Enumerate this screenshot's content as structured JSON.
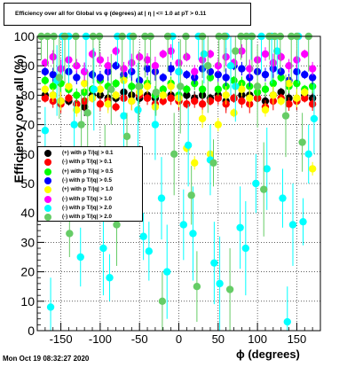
{
  "title": "Efficiency over all for Global vs φ (degrees) at | η | <= 1.0 at pT > 0.11",
  "footer": "Mon Oct 19 08:32:27 2020",
  "chart_data": {
    "type": "scatter",
    "xlabel": "ϕ (degrees)",
    "ylabel": "Efficiency over all (%)",
    "xlim": [
      -180,
      180
    ],
    "ylim": [
      0,
      100
    ],
    "xticks": [
      -150,
      -100,
      -50,
      0,
      50,
      100,
      150
    ],
    "yticks": [
      0,
      10,
      20,
      30,
      40,
      50,
      60,
      70,
      80,
      90,
      100
    ],
    "grid": true,
    "legend_position": "left-middle",
    "series": [
      {
        "name": "(+) with p T/|q| > 0.1",
        "color": "#000000",
        "x": [
          -170,
          -160,
          -150,
          -140,
          -130,
          -120,
          -110,
          -100,
          -90,
          -80,
          -70,
          -60,
          -50,
          -40,
          -30,
          -20,
          -10,
          0,
          10,
          20,
          30,
          40,
          50,
          60,
          70,
          80,
          90,
          100,
          110,
          120,
          130,
          140,
          150,
          160,
          170
        ],
        "y": [
          80,
          80,
          78,
          78,
          77,
          76,
          80,
          80,
          79,
          79,
          81,
          80,
          79,
          80,
          79,
          80,
          80,
          78,
          80,
          79,
          80,
          79,
          80,
          78,
          79,
          80,
          80,
          79,
          78,
          80,
          81,
          79,
          78,
          80,
          79
        ]
      },
      {
        "name": "(-) with p T/|q| > 0.1",
        "color": "#ff0000",
        "x": [
          -170,
          -160,
          -150,
          -140,
          -130,
          -120,
          -110,
          -100,
          -90,
          -80,
          -70,
          -60,
          -50,
          -40,
          -30,
          -20,
          -10,
          0,
          10,
          20,
          30,
          40,
          50,
          60,
          70,
          80,
          90,
          100,
          110,
          120,
          130,
          140,
          150,
          160,
          170
        ],
        "y": [
          79,
          78,
          77,
          79,
          77,
          78,
          79,
          77,
          78,
          76,
          79,
          78,
          80,
          79,
          77,
          78,
          79,
          78,
          77,
          78,
          77,
          78,
          79,
          77,
          79,
          78,
          77,
          79,
          76,
          78,
          79,
          77,
          78,
          79,
          77
        ]
      },
      {
        "name": "(+) with p T/|q| > 0.5",
        "color": "#00ff00",
        "x": [
          -170,
          -160,
          -150,
          -140,
          -130,
          -120,
          -110,
          -100,
          -90,
          -80,
          -70,
          -60,
          -50,
          -40,
          -30,
          -20,
          -10,
          0,
          10,
          20,
          30,
          40,
          50,
          60,
          70,
          80,
          90,
          100,
          110,
          120,
          130,
          140,
          150,
          160,
          170
        ],
        "y": [
          85,
          83,
          84,
          82,
          80,
          81,
          82,
          85,
          83,
          84,
          86,
          83,
          83,
          84,
          80,
          82,
          84,
          80,
          82,
          84,
          82,
          86,
          82,
          83,
          85,
          84,
          83,
          81,
          82,
          84,
          86,
          83,
          84,
          82,
          83
        ]
      },
      {
        "name": "(-) with p T/|q| > 0.5",
        "color": "#0000ff",
        "x": [
          -170,
          -160,
          -150,
          -140,
          -130,
          -120,
          -110,
          -100,
          -90,
          -80,
          -70,
          -60,
          -50,
          -40,
          -30,
          -20,
          -10,
          0,
          10,
          20,
          30,
          40,
          50,
          60,
          70,
          80,
          90,
          100,
          110,
          120,
          130,
          140,
          150,
          160,
          170
        ],
        "y": [
          88,
          87,
          89,
          88,
          86,
          88,
          87,
          86,
          88,
          90,
          87,
          88,
          85,
          89,
          88,
          86,
          89,
          88,
          87,
          86,
          89,
          88,
          87,
          86,
          90,
          89,
          86,
          88,
          87,
          89,
          88,
          85,
          88,
          87,
          86
        ]
      },
      {
        "name": "(+) with p T/|q| > 1.0",
        "color": "#ffff00",
        "x": [
          -170,
          -160,
          -150,
          -140,
          -130,
          -120,
          -110,
          -100,
          -90,
          -80,
          -70,
          -60,
          -50,
          -40,
          -30,
          -20,
          -10,
          0,
          10,
          20,
          30,
          40,
          50,
          60,
          70,
          80,
          90,
          100,
          110,
          120,
          130,
          140,
          150,
          160,
          170
        ],
        "y": [
          82,
          80,
          78,
          83,
          75,
          84,
          79,
          82,
          77,
          80,
          85,
          78,
          81,
          83,
          76,
          80,
          83,
          79,
          62,
          57,
          72,
          60,
          70,
          80,
          74,
          82,
          79,
          83,
          75,
          80,
          78,
          84,
          79,
          81,
          55
        ]
      },
      {
        "name": "(-) with p T/|q| > 1.0",
        "color": "#ff00ff",
        "x": [
          -170,
          -160,
          -150,
          -140,
          -130,
          -120,
          -110,
          -100,
          -90,
          -80,
          -70,
          -60,
          -50,
          -40,
          -30,
          -20,
          -10,
          0,
          10,
          20,
          30,
          40,
          50,
          60,
          70,
          80,
          90,
          100,
          110,
          120,
          130,
          140,
          150,
          160,
          170
        ],
        "y": [
          91,
          93,
          89,
          92,
          90,
          88,
          94,
          92,
          90,
          95,
          89,
          91,
          93,
          92,
          90,
          94,
          95,
          91,
          93,
          88,
          92,
          94,
          90,
          93,
          91,
          95,
          89,
          92,
          94,
          91,
          93,
          90,
          92,
          94,
          89
        ]
      },
      {
        "name": "(-) with p T/|q| > 2.0",
        "color": "#00ffff",
        "x": [
          -170,
          -163,
          -155,
          -148,
          -140,
          -133,
          -125,
          -118,
          -108,
          -96,
          -88,
          -78,
          -70,
          -62,
          -52,
          -45,
          -38,
          -30,
          -22,
          -15,
          -8,
          0,
          6,
          12,
          18,
          25,
          32,
          40,
          45,
          52,
          60,
          66,
          72,
          78,
          85,
          92,
          98,
          105,
          112,
          118,
          125,
          132,
          138,
          145,
          152,
          158,
          165,
          172
        ],
        "y": [
          68,
          8,
          85,
          100,
          100,
          70,
          25,
          100,
          82,
          28,
          18,
          100,
          73,
          100,
          75,
          32,
          27,
          70,
          45,
          20,
          100,
          88,
          36,
          63,
          33,
          100,
          94,
          58,
          23,
          16,
          100,
          90,
          83,
          35,
          28,
          100,
          50,
          100,
          55,
          100,
          95,
          45,
          3,
          36,
          100,
          37,
          60,
          72
        ]
      },
      {
        "name": "(-) with p T/|q| > 2.0",
        "color": "#66cc66",
        "x": [
          -175,
          -167,
          -159,
          -152,
          -145,
          -139,
          -131,
          -124,
          -116,
          -109,
          -101,
          -94,
          -86,
          -79,
          -72,
          -66,
          -58,
          -51,
          -43,
          -36,
          -29,
          -21,
          -14,
          -6,
          2,
          9,
          16,
          23,
          30,
          37,
          44,
          51,
          58,
          65,
          72,
          79,
          86,
          93,
          100,
          108,
          115,
          122,
          129,
          136,
          143,
          150,
          157,
          165
        ],
        "y": [
          100,
          100,
          100,
          86,
          100,
          33,
          100,
          70,
          74,
          100,
          100,
          60,
          82,
          36,
          100,
          66,
          100,
          83,
          100,
          100,
          81,
          10,
          100,
          60,
          83,
          100,
          46,
          15,
          100,
          90,
          57,
          100,
          100,
          14,
          95,
          100,
          100,
          100,
          83,
          48,
          100,
          100,
          100,
          73,
          100,
          100,
          64,
          100
        ]
      }
    ]
  }
}
